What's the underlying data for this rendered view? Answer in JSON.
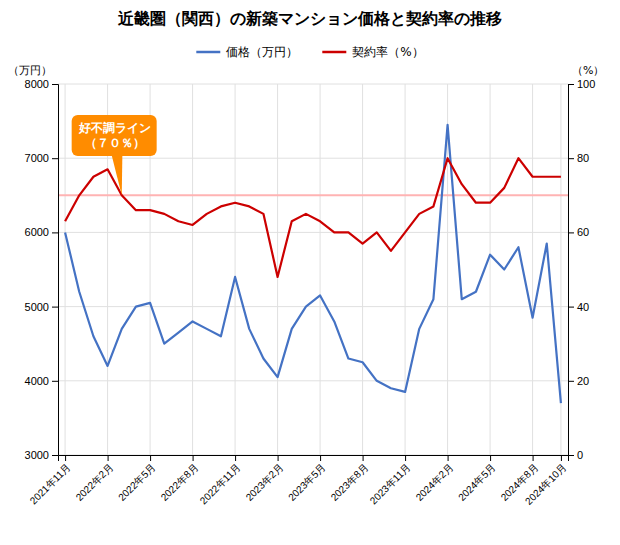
{
  "chart_data": {
    "type": "line",
    "title": "近畿圏（関西）の新築マンション価格と契約率の推移",
    "y_label": "（万円）",
    "y2_label": "（%）",
    "categories": [
      "2021年11月",
      null,
      null,
      "2022年2月",
      null,
      null,
      "2022年5月",
      null,
      null,
      "2022年8月",
      null,
      null,
      "2022年11月",
      null,
      null,
      "2023年2月",
      null,
      null,
      "2023年5月",
      null,
      null,
      "2023年8月",
      null,
      null,
      "2023年11月",
      null,
      null,
      "2024年2月",
      null,
      null,
      "2024年5月",
      null,
      null,
      "2024年8月",
      null,
      "2024年10月"
    ],
    "series": [
      {
        "name": "価格（万円）",
        "color": "#4472C4",
        "axis": "y",
        "values": [
          6000,
          5200,
          4600,
          4200,
          4700,
          5000,
          5050,
          4500,
          4650,
          4800,
          4700,
          4600,
          5400,
          4700,
          4300,
          4050,
          4700,
          5000,
          5150,
          4800,
          4300,
          4250,
          4000,
          3900,
          3850,
          4700,
          5100,
          7450,
          5100,
          5200,
          5700,
          5500,
          5800,
          4850,
          5850,
          3700
        ]
      },
      {
        "name": "契約率（%）",
        "color": "#CC0000",
        "axis": "y2",
        "values": [
          63,
          70,
          75,
          77,
          70,
          66,
          66,
          65,
          63,
          62,
          65,
          67,
          68,
          67,
          65,
          48,
          63,
          65,
          63,
          60,
          60,
          57,
          60,
          55,
          60,
          65,
          67,
          80,
          73,
          68,
          68,
          72,
          80,
          75,
          75,
          75
        ]
      }
    ],
    "ylim": [
      3000,
      8000
    ],
    "yticks": [
      3000,
      4000,
      5000,
      6000,
      7000,
      8000
    ],
    "y2lim": [
      0,
      100
    ],
    "y2ticks": [
      0,
      20,
      40,
      60,
      80,
      100
    ],
    "annotations": [
      {
        "text": "好不調ライン\n（７０％）",
        "x": 4,
        "y": 70,
        "axis": "y2",
        "color": "#FF8C00",
        "line_color": "#FFB3B3"
      }
    ],
    "grid": true,
    "legend": "top"
  }
}
